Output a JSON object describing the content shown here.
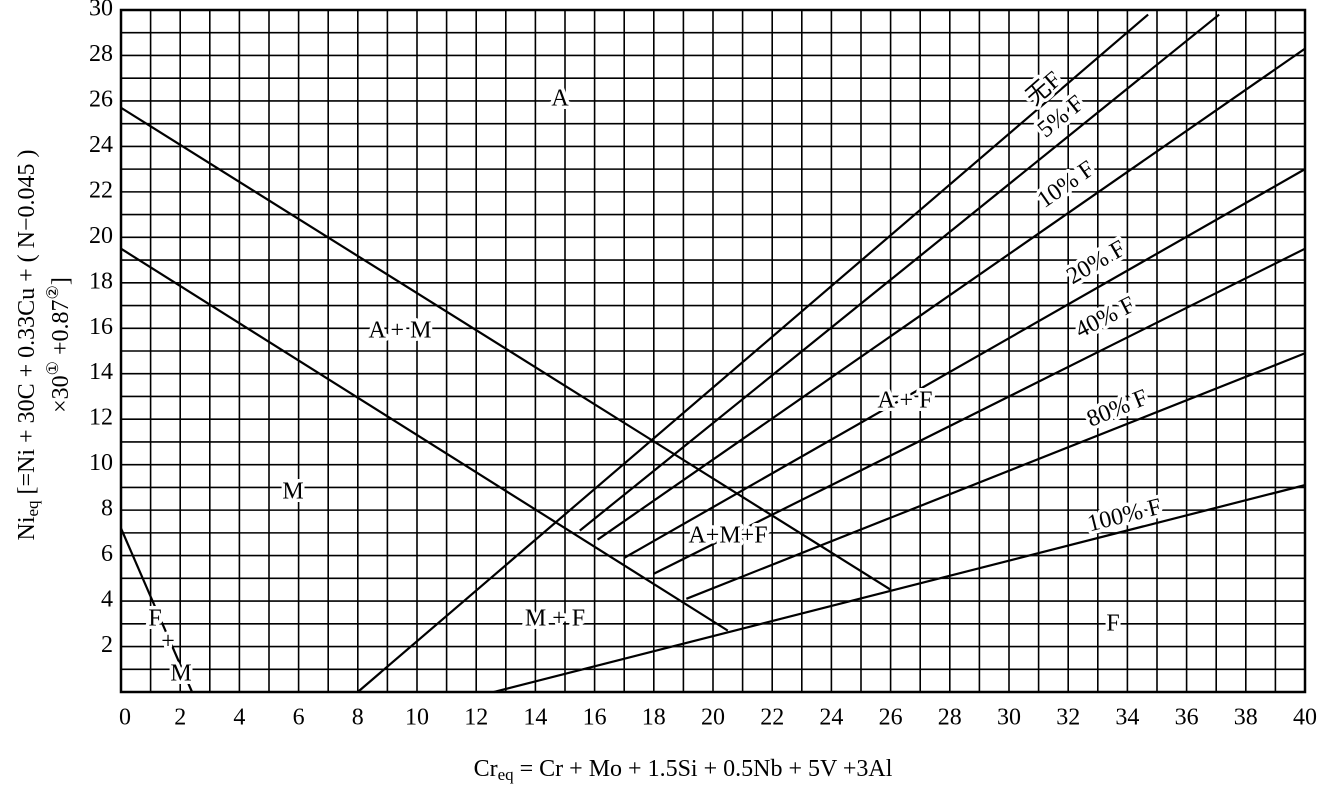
{
  "chart_data": {
    "type": "line",
    "x_label": {
      "main": "Cr",
      "sub": "eq",
      "rest": " = Cr + Mo + 1.5Si + 0.5Nb + 5V +3Al"
    },
    "y_label": {
      "main": "Ni",
      "sub": "eq",
      "rest1": " [=Ni + 30C + 0.33Cu + ( N−0.045 )",
      "rest2a": "×30",
      "sup1": "①",
      "rest2b": " +0.87",
      "sup2": "②",
      "rest2c": "]"
    },
    "xlim": [
      0,
      40
    ],
    "ylim": [
      0,
      30
    ],
    "xticks": [
      0,
      2,
      4,
      6,
      8,
      10,
      12,
      14,
      16,
      18,
      20,
      22,
      24,
      26,
      28,
      30,
      32,
      34,
      36,
      38,
      40
    ],
    "yticks": [
      2,
      4,
      6,
      8,
      10,
      12,
      14,
      16,
      18,
      20,
      22,
      24,
      26,
      28,
      30
    ],
    "grid": true,
    "series": [
      {
        "color": "#000000",
        "x": [
          0,
          26
        ],
        "values": [
          25.7,
          4.5
        ]
      },
      {
        "color": "#000000",
        "x": [
          0,
          20.5
        ],
        "values": [
          19.5,
          2.7
        ]
      },
      {
        "color": "#000000",
        "x": [
          0,
          2.4
        ],
        "values": [
          7.2,
          0
        ]
      },
      {
        "name": "无F",
        "color": "#000000",
        "x": [
          8,
          34.7
        ],
        "values": [
          0,
          29.8
        ]
      },
      {
        "name": "5% F",
        "color": "#000000",
        "x": [
          15.5,
          37.1
        ],
        "values": [
          7.1,
          29.8
        ]
      },
      {
        "name": "10% F",
        "color": "#000000",
        "x": [
          16.1,
          40
        ],
        "values": [
          6.7,
          28.3
        ]
      },
      {
        "name": "20% F",
        "color": "#000000",
        "x": [
          17,
          40
        ],
        "values": [
          5.9,
          23
        ]
      },
      {
        "name": "40% F",
        "color": "#000000",
        "x": [
          18,
          40
        ],
        "values": [
          5.2,
          19.5
        ]
      },
      {
        "name": "80% F",
        "color": "#000000",
        "x": [
          19.1,
          40
        ],
        "values": [
          4.1,
          14.9
        ]
      },
      {
        "name": "100% F",
        "color": "#000000",
        "x": [
          12.6,
          40
        ],
        "values": [
          0,
          9.1
        ]
      }
    ],
    "annotations": [
      "A",
      "A + M",
      "M",
      "F",
      "+",
      "M",
      "M + F",
      "A + F",
      "A+M+F",
      "F"
    ]
  }
}
